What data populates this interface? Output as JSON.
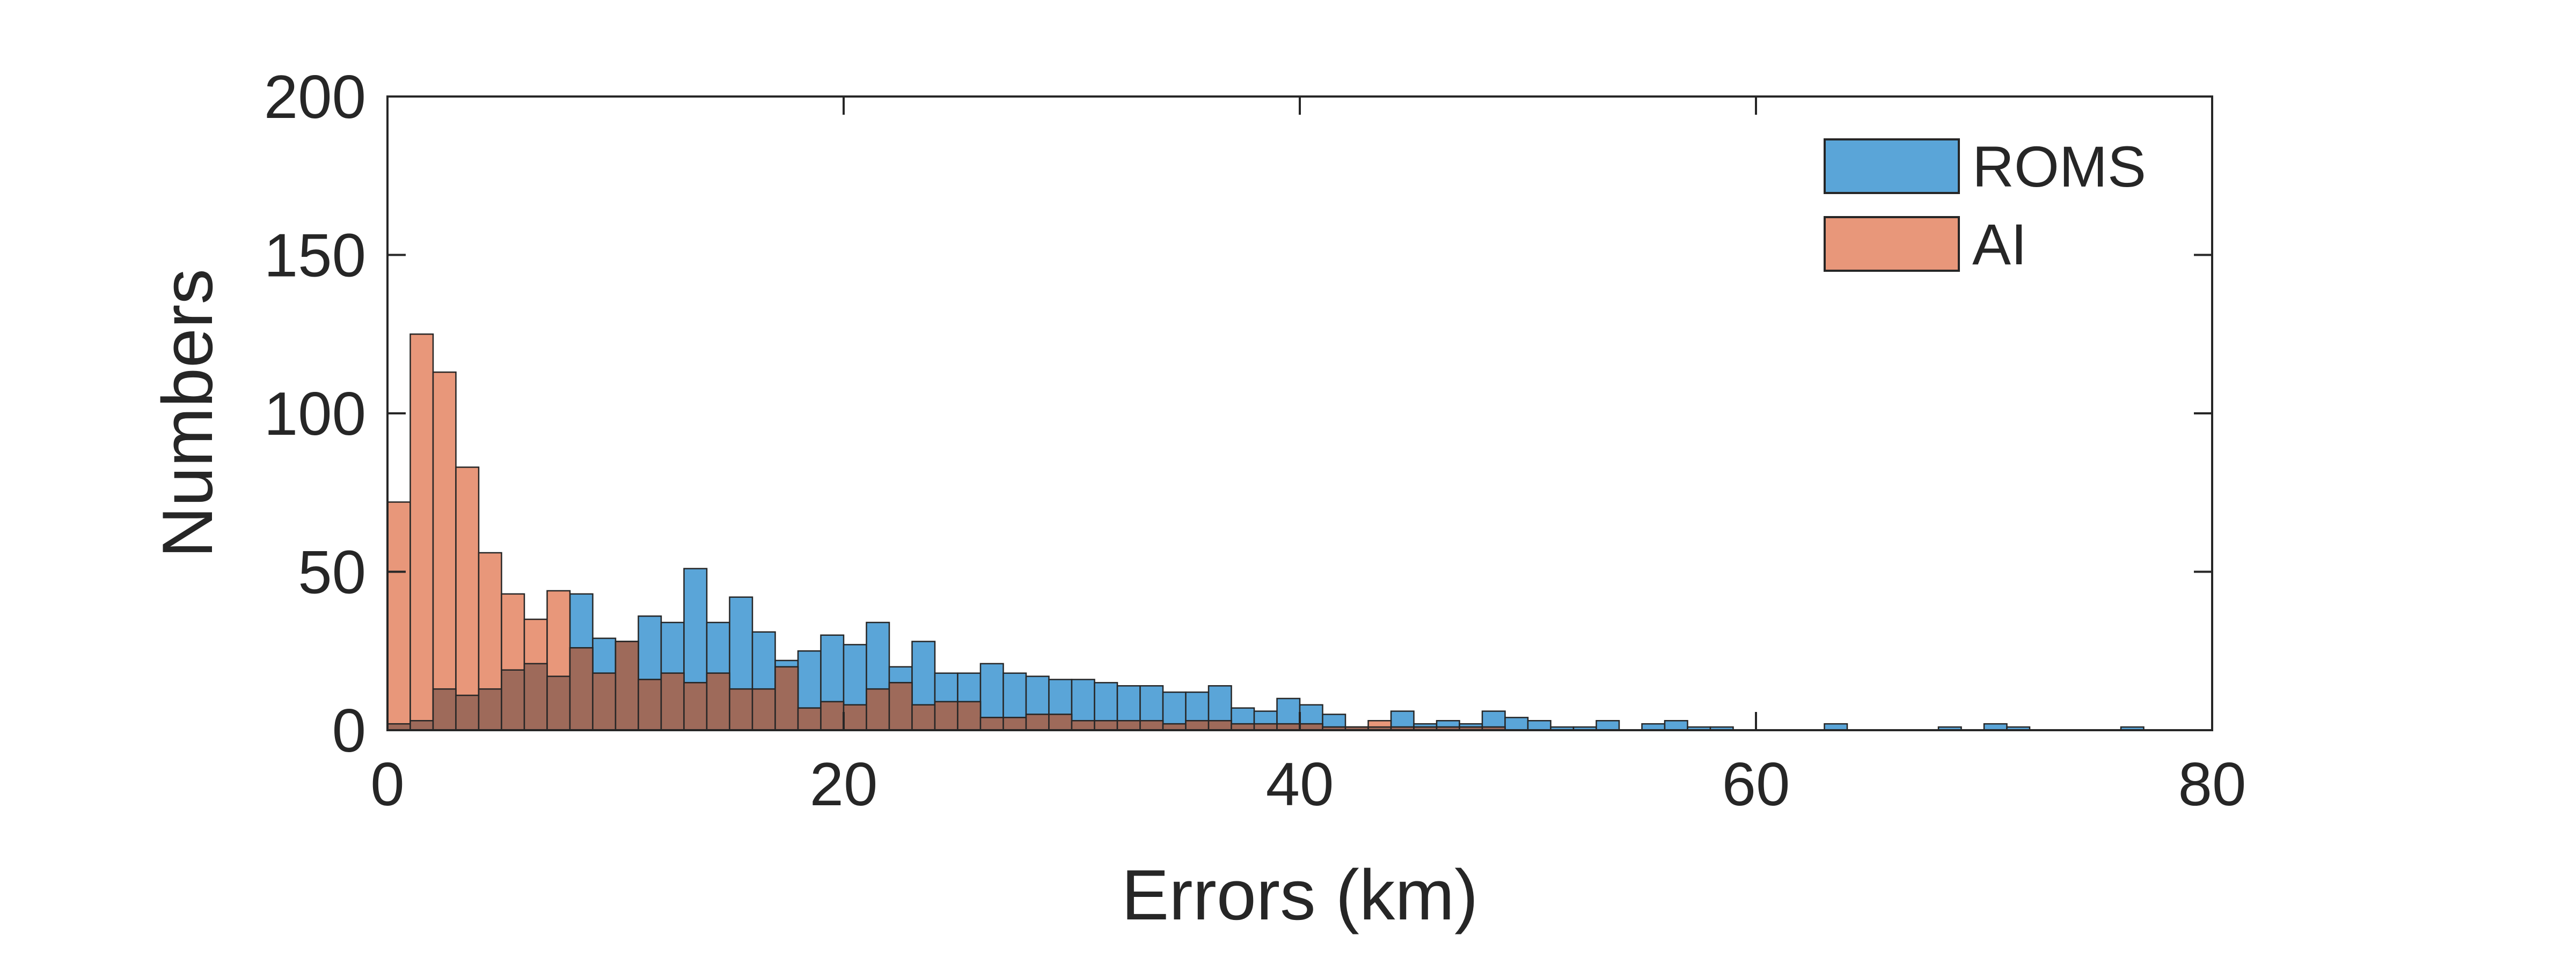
{
  "chart_data": {
    "type": "histogram",
    "xlabel": "Errors (km)",
    "ylabel": "Numbers",
    "xlim": [
      0,
      80
    ],
    "ylim": [
      0,
      200
    ],
    "xticks": [
      0,
      20,
      40,
      60,
      80
    ],
    "yticks": [
      0,
      50,
      100,
      150,
      200
    ],
    "bin_width": 1,
    "grid": false,
    "legend_position": "top-right",
    "overlap_color": "#9E6A5A",
    "series": [
      {
        "name": "ROMS",
        "color": "#5AA5D8",
        "bins": [
          {
            "x": 0,
            "count": 2
          },
          {
            "x": 1,
            "count": 3
          },
          {
            "x": 2,
            "count": 13
          },
          {
            "x": 3,
            "count": 11
          },
          {
            "x": 4,
            "count": 13
          },
          {
            "x": 5,
            "count": 19
          },
          {
            "x": 6,
            "count": 21
          },
          {
            "x": 7,
            "count": 17
          },
          {
            "x": 8,
            "count": 43
          },
          {
            "x": 9,
            "count": 29
          },
          {
            "x": 10,
            "count": 28
          },
          {
            "x": 11,
            "count": 36
          },
          {
            "x": 12,
            "count": 34
          },
          {
            "x": 13,
            "count": 51
          },
          {
            "x": 14,
            "count": 34
          },
          {
            "x": 15,
            "count": 42
          },
          {
            "x": 16,
            "count": 31
          },
          {
            "x": 17,
            "count": 22
          },
          {
            "x": 18,
            "count": 25
          },
          {
            "x": 19,
            "count": 30
          },
          {
            "x": 20,
            "count": 27
          },
          {
            "x": 21,
            "count": 34
          },
          {
            "x": 22,
            "count": 20
          },
          {
            "x": 23,
            "count": 28
          },
          {
            "x": 24,
            "count": 18
          },
          {
            "x": 25,
            "count": 18
          },
          {
            "x": 26,
            "count": 21
          },
          {
            "x": 27,
            "count": 18
          },
          {
            "x": 28,
            "count": 17
          },
          {
            "x": 29,
            "count": 16
          },
          {
            "x": 30,
            "count": 16
          },
          {
            "x": 31,
            "count": 15
          },
          {
            "x": 32,
            "count": 14
          },
          {
            "x": 33,
            "count": 14
          },
          {
            "x": 34,
            "count": 12
          },
          {
            "x": 35,
            "count": 12
          },
          {
            "x": 36,
            "count": 14
          },
          {
            "x": 37,
            "count": 7
          },
          {
            "x": 38,
            "count": 6
          },
          {
            "x": 39,
            "count": 10
          },
          {
            "x": 40,
            "count": 8
          },
          {
            "x": 41,
            "count": 5
          },
          {
            "x": 42,
            "count": 1
          },
          {
            "x": 43,
            "count": 1
          },
          {
            "x": 44,
            "count": 6
          },
          {
            "x": 45,
            "count": 2
          },
          {
            "x": 46,
            "count": 3
          },
          {
            "x": 47,
            "count": 2
          },
          {
            "x": 48,
            "count": 6
          },
          {
            "x": 49,
            "count": 4
          },
          {
            "x": 50,
            "count": 3
          },
          {
            "x": 51,
            "count": 1
          },
          {
            "x": 52,
            "count": 1
          },
          {
            "x": 53,
            "count": 3
          },
          {
            "x": 54,
            "count": 0
          },
          {
            "x": 55,
            "count": 2
          },
          {
            "x": 56,
            "count": 3
          },
          {
            "x": 57,
            "count": 1
          },
          {
            "x": 58,
            "count": 1
          },
          {
            "x": 63,
            "count": 2
          },
          {
            "x": 68,
            "count": 1
          },
          {
            "x": 70,
            "count": 2
          },
          {
            "x": 71,
            "count": 1
          },
          {
            "x": 76,
            "count": 1
          }
        ]
      },
      {
        "name": "AI",
        "color": "#E8977A",
        "bins": [
          {
            "x": 0,
            "count": 72
          },
          {
            "x": 1,
            "count": 125
          },
          {
            "x": 2,
            "count": 113
          },
          {
            "x": 3,
            "count": 83
          },
          {
            "x": 4,
            "count": 56
          },
          {
            "x": 5,
            "count": 43
          },
          {
            "x": 6,
            "count": 35
          },
          {
            "x": 7,
            "count": 44
          },
          {
            "x": 8,
            "count": 26
          },
          {
            "x": 9,
            "count": 18
          },
          {
            "x": 10,
            "count": 28
          },
          {
            "x": 11,
            "count": 16
          },
          {
            "x": 12,
            "count": 18
          },
          {
            "x": 13,
            "count": 15
          },
          {
            "x": 14,
            "count": 18
          },
          {
            "x": 15,
            "count": 13
          },
          {
            "x": 16,
            "count": 13
          },
          {
            "x": 17,
            "count": 20
          },
          {
            "x": 18,
            "count": 7
          },
          {
            "x": 19,
            "count": 9
          },
          {
            "x": 20,
            "count": 8
          },
          {
            "x": 21,
            "count": 13
          },
          {
            "x": 22,
            "count": 15
          },
          {
            "x": 23,
            "count": 8
          },
          {
            "x": 24,
            "count": 9
          },
          {
            "x": 25,
            "count": 9
          },
          {
            "x": 26,
            "count": 4
          },
          {
            "x": 27,
            "count": 4
          },
          {
            "x": 28,
            "count": 5
          },
          {
            "x": 29,
            "count": 5
          },
          {
            "x": 30,
            "count": 3
          },
          {
            "x": 31,
            "count": 3
          },
          {
            "x": 32,
            "count": 3
          },
          {
            "x": 33,
            "count": 3
          },
          {
            "x": 34,
            "count": 2
          },
          {
            "x": 35,
            "count": 3
          },
          {
            "x": 36,
            "count": 3
          },
          {
            "x": 37,
            "count": 2
          },
          {
            "x": 38,
            "count": 2
          },
          {
            "x": 39,
            "count": 2
          },
          {
            "x": 40,
            "count": 2
          },
          {
            "x": 41,
            "count": 1
          },
          {
            "x": 42,
            "count": 1
          },
          {
            "x": 43,
            "count": 3
          },
          {
            "x": 44,
            "count": 1
          },
          {
            "x": 45,
            "count": 1
          },
          {
            "x": 46,
            "count": 1
          },
          {
            "x": 47,
            "count": 1
          },
          {
            "x": 48,
            "count": 1
          }
        ]
      }
    ]
  }
}
